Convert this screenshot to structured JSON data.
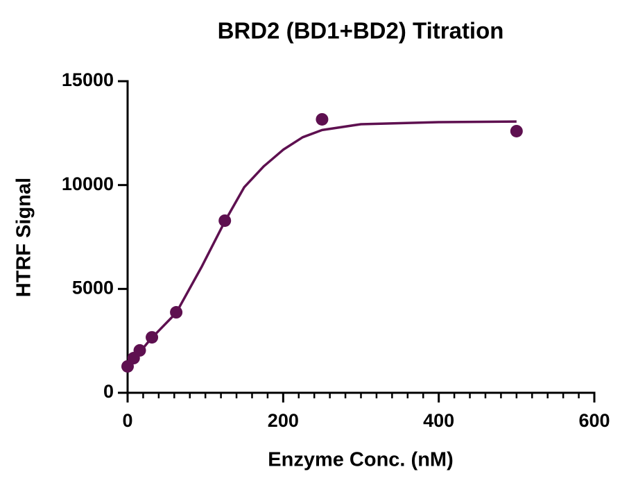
{
  "chart_data": {
    "type": "scatter",
    "title": "BRD2 (BD1+BD2) Titration",
    "x_label": "Enzyme Conc. (nM)",
    "y_label": "HTRF Signal",
    "xlim": [
      0,
      600
    ],
    "xticks": [
      0,
      200,
      400,
      600
    ],
    "xminorticks": [
      20,
      40,
      60,
      80,
      100,
      120,
      140,
      160,
      180,
      220,
      240,
      260,
      280,
      300,
      320,
      340,
      360,
      380,
      420,
      440,
      460,
      480,
      500,
      520,
      540,
      560,
      580
    ],
    "ylim": [
      0,
      15000
    ],
    "yticks": [
      0,
      5000,
      10000,
      15000
    ],
    "color": "#5e1050",
    "points": {
      "x": [
        0,
        7.8,
        15.6,
        31.25,
        62.5,
        125,
        250,
        500
      ],
      "values": [
        1270,
        1670,
        2040,
        2670,
        3875,
        8286,
        13164,
        12596
      ]
    },
    "fit": {
      "x": [
        0,
        30,
        62.5,
        95,
        125,
        150,
        175,
        200,
        225,
        250,
        300,
        400,
        500
      ],
      "values": [
        1250,
        2600,
        3850,
        6050,
        8250,
        9900,
        10900,
        11700,
        12300,
        12650,
        12930,
        13030,
        13060
      ]
    }
  }
}
